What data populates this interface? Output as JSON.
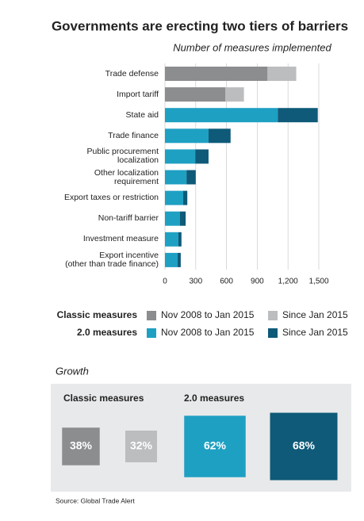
{
  "chart_data": {
    "type": "stacked-bar-horizontal",
    "title": "Governments are erecting two tiers of barriers",
    "subtitle": "Number of measures implemented",
    "categories": [
      "Trade defense",
      "Import tariff",
      "State aid",
      "Trade finance",
      "Public procurement\nlocalization",
      "Other localization\nrequirement",
      "Export taxes or restriction",
      "Non-tariff barrier",
      "Investment measure",
      "Export incentive\n(other than trade finance)"
    ],
    "xlim": [
      0,
      1500
    ],
    "xticks": [
      0,
      300,
      600,
      900,
      {
        "value": 1200,
        "label": "1,200"
      },
      {
        "value": 1500,
        "label": "1,500"
      }
    ],
    "grid": true,
    "series_groups": [
      {
        "name": "Classic measures",
        "series": [
          {
            "name": "Nov 2008 to Jan 2015",
            "color": "#8c8d8f",
            "values": [
              1000,
              590,
              null,
              null,
              null,
              null,
              null,
              null,
              null,
              null
            ]
          },
          {
            "name": "Since Jan 2015",
            "color": "#bcbdbf",
            "values": [
              280,
              180,
              null,
              null,
              null,
              null,
              null,
              null,
              null,
              null
            ]
          }
        ]
      },
      {
        "name": "2.0 measures",
        "series": [
          {
            "name": "Nov 2008 to Jan 2015",
            "color": "#1ea0c3",
            "values": [
              null,
              null,
              1100,
              425,
              295,
              210,
              178,
              147,
              131,
              124
            ]
          },
          {
            "name": "Since Jan 2015",
            "color": "#0e5a78",
            "values": [
              null,
              null,
              390,
              215,
              130,
              90,
              40,
              55,
              30,
              30
            ]
          }
        ]
      }
    ],
    "growth": {
      "title": "Growth",
      "groups": [
        {
          "name": "Classic measures",
          "values": [
            38,
            32
          ],
          "value_labels": [
            "38%",
            "32%"
          ]
        },
        {
          "name": "2.0 measures",
          "values": [
            62,
            68
          ],
          "value_labels": [
            "62%",
            "68%"
          ]
        }
      ]
    },
    "source": "Source: Global Trade Alert"
  }
}
